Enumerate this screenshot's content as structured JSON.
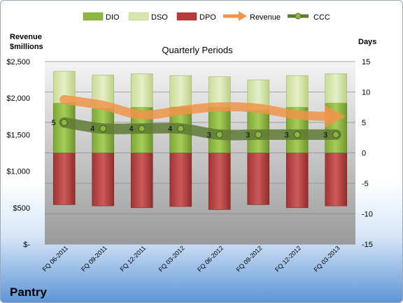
{
  "company": "Pantry",
  "chart_data": {
    "type": "bar",
    "title": "Quarterly Periods",
    "y_left_label_line1": "Revenue",
    "y_left_label_line2": "$millions",
    "y_right_label": "Days",
    "categories": [
      "FQ 06-2011",
      "FQ 09-2011",
      "FQ 12-2011",
      "FQ 03-2012",
      "FQ 06-2012",
      "FQ 09-2012",
      "FQ 12-2012",
      "FQ 03-2013"
    ],
    "y_left_ticks": [
      "$-",
      "$500",
      "$1,000",
      "$1,500",
      "$2,000",
      "$2,500"
    ],
    "y_left_range": [
      0,
      2500
    ],
    "y_right_ticks": [
      "-15",
      "-10",
      "-5",
      "0",
      "5",
      "10",
      "15"
    ],
    "y_right_range": [
      -15,
      15
    ],
    "legend_position": "top",
    "grid": true,
    "series": [
      {
        "name": "DIO",
        "type": "stacked-bar",
        "axis": "right",
        "color": "#8db83f",
        "values": [
          8.2,
          7.3,
          7.5,
          7.5,
          7.5,
          7.0,
          7.5,
          8.2
        ]
      },
      {
        "name": "DSO",
        "type": "stacked-bar",
        "axis": "right",
        "color": "#d6e6ae",
        "values": [
          5.2,
          5.5,
          5.5,
          5.2,
          5.0,
          5.0,
          5.2,
          4.8
        ]
      },
      {
        "name": "DPO",
        "type": "stacked-bar-negative",
        "axis": "right",
        "color": "#b63c3c",
        "values": [
          -8.5,
          -8.7,
          -9.0,
          -8.8,
          -9.3,
          -8.5,
          -9.0,
          -8.7
        ]
      },
      {
        "name": "Revenue",
        "type": "line",
        "axis": "left",
        "color": "#f0944a",
        "values": [
          1980,
          1900,
          1770,
          1830,
          1880,
          1860,
          1770,
          1750
        ]
      },
      {
        "name": "CCC",
        "type": "line",
        "axis": "right",
        "color": "#5f7a35",
        "values": [
          5,
          4,
          4,
          4,
          3,
          3,
          3,
          3
        ],
        "point_labels": [
          "5",
          "4",
          "4",
          "4",
          "3",
          "3",
          "3",
          "3"
        ]
      }
    ]
  }
}
